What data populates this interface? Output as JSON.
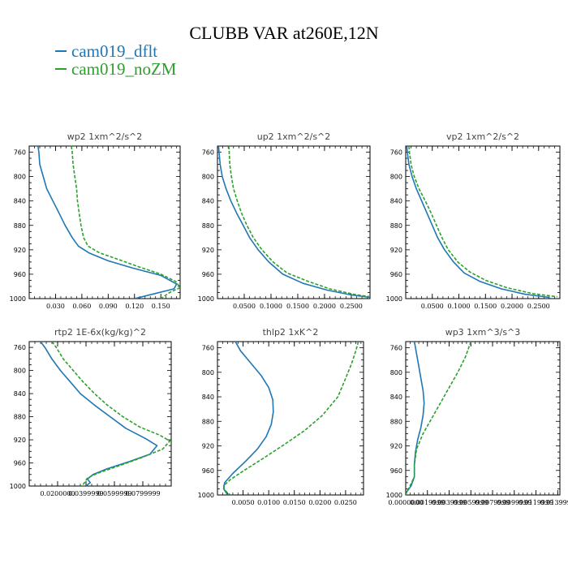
{
  "title": "CLUBB VAR at260E,12N",
  "legend": [
    {
      "name": "cam019_dflt",
      "color": "#1f77b4"
    },
    {
      "name": "cam019_noZM",
      "color": "#2ca02c"
    }
  ],
  "chart_data": [
    {
      "type": "line",
      "title": "wp2   1xm^2/s^2",
      "xlim": [
        0.0,
        0.172
      ],
      "ylim": [
        1000,
        750
      ],
      "xticks": [
        0.03,
        0.06,
        0.09,
        0.12,
        0.15
      ],
      "xtick_labels": [
        "0.030",
        "0.060",
        "0.090",
        "0.120",
        "0.150"
      ],
      "yticks": [
        760,
        800,
        840,
        880,
        920,
        960,
        1000
      ],
      "series": [
        {
          "color": "#1f77b4",
          "dash": "",
          "points": [
            [
              0.01,
              750
            ],
            [
              0.011,
              760
            ],
            [
              0.012,
              780
            ],
            [
              0.016,
              800
            ],
            [
              0.02,
              820
            ],
            [
              0.027,
              840
            ],
            [
              0.034,
              860
            ],
            [
              0.041,
              880
            ],
            [
              0.049,
              900
            ],
            [
              0.056,
              914
            ],
            [
              0.068,
              925
            ],
            [
              0.09,
              938
            ],
            [
              0.118,
              950
            ],
            [
              0.15,
              962
            ],
            [
              0.168,
              976
            ],
            [
              0.165,
              984
            ],
            [
              0.14,
              993
            ],
            [
              0.12,
              1000
            ]
          ]
        },
        {
          "color": "#2ca02c",
          "dash": "4,2",
          "points": [
            [
              0.048,
              750
            ],
            [
              0.049,
              760
            ],
            [
              0.05,
              780
            ],
            [
              0.052,
              800
            ],
            [
              0.054,
              820
            ],
            [
              0.055,
              840
            ],
            [
              0.057,
              860
            ],
            [
              0.059,
              880
            ],
            [
              0.062,
              900
            ],
            [
              0.067,
              914
            ],
            [
              0.08,
              925
            ],
            [
              0.1,
              935
            ],
            [
              0.125,
              948
            ],
            [
              0.15,
              960
            ],
            [
              0.167,
              972
            ],
            [
              0.172,
              982
            ],
            [
              0.16,
              990
            ],
            [
              0.15,
              1000
            ]
          ]
        }
      ]
    },
    {
      "type": "line",
      "title": "up2   1xm^2/s^2",
      "xlim": [
        0.0,
        0.285
      ],
      "ylim": [
        1000,
        750
      ],
      "xticks": [
        0.05,
        0.1,
        0.15,
        0.2,
        0.25
      ],
      "xtick_labels": [
        "0.0500",
        "0.1000",
        "0.1500",
        "0.2000",
        "0.2500"
      ],
      "yticks": [
        760,
        800,
        840,
        880,
        920,
        960,
        1000
      ],
      "series": [
        {
          "color": "#1f77b4",
          "dash": "",
          "points": [
            [
              0.002,
              750
            ],
            [
              0.003,
              760
            ],
            [
              0.005,
              780
            ],
            [
              0.009,
              800
            ],
            [
              0.016,
              820
            ],
            [
              0.025,
              840
            ],
            [
              0.036,
              860
            ],
            [
              0.048,
              880
            ],
            [
              0.06,
              900
            ],
            [
              0.076,
              920
            ],
            [
              0.096,
              940
            ],
            [
              0.122,
              960
            ],
            [
              0.16,
              975
            ],
            [
              0.205,
              986
            ],
            [
              0.25,
              994
            ],
            [
              0.285,
              998
            ]
          ]
        },
        {
          "color": "#2ca02c",
          "dash": "4,2",
          "points": [
            [
              0.021,
              750
            ],
            [
              0.022,
              760
            ],
            [
              0.023,
              780
            ],
            [
              0.026,
              800
            ],
            [
              0.03,
              820
            ],
            [
              0.037,
              840
            ],
            [
              0.045,
              860
            ],
            [
              0.055,
              880
            ],
            [
              0.067,
              900
            ],
            [
              0.083,
              920
            ],
            [
              0.104,
              940
            ],
            [
              0.13,
              958
            ],
            [
              0.17,
              972
            ],
            [
              0.21,
              984
            ],
            [
              0.255,
              993
            ],
            [
              0.285,
              997
            ]
          ]
        }
      ]
    },
    {
      "type": "line",
      "title": "vp2   1xm^2/s^2",
      "xlim": [
        0.0,
        0.29
      ],
      "ylim": [
        1000,
        750
      ],
      "xticks": [
        0.05,
        0.1,
        0.15,
        0.2,
        0.25
      ],
      "xtick_labels": [
        "0.0500",
        "0.1000",
        "0.1500",
        "0.2000",
        "0.2500"
      ],
      "yticks": [
        760,
        800,
        840,
        880,
        920,
        960,
        1000
      ],
      "series": [
        {
          "color": "#1f77b4",
          "dash": "",
          "points": [
            [
              0.002,
              750
            ],
            [
              0.003,
              760
            ],
            [
              0.006,
              780
            ],
            [
              0.012,
              800
            ],
            [
              0.02,
              820
            ],
            [
              0.03,
              840
            ],
            [
              0.04,
              860
            ],
            [
              0.05,
              880
            ],
            [
              0.06,
              900
            ],
            [
              0.073,
              920
            ],
            [
              0.09,
              940
            ],
            [
              0.11,
              958
            ],
            [
              0.14,
              972
            ],
            [
              0.18,
              984
            ],
            [
              0.225,
              993
            ],
            [
              0.27,
              998
            ]
          ]
        },
        {
          "color": "#2ca02c",
          "dash": "4,2",
          "points": [
            [
              0.006,
              750
            ],
            [
              0.007,
              760
            ],
            [
              0.01,
              780
            ],
            [
              0.016,
              800
            ],
            [
              0.025,
              820
            ],
            [
              0.037,
              840
            ],
            [
              0.048,
              860
            ],
            [
              0.058,
              880
            ],
            [
              0.068,
              900
            ],
            [
              0.08,
              920
            ],
            [
              0.098,
              940
            ],
            [
              0.12,
              956
            ],
            [
              0.15,
              970
            ],
            [
              0.19,
              982
            ],
            [
              0.24,
              992
            ],
            [
              0.285,
              997
            ]
          ]
        }
      ]
    },
    {
      "type": "line",
      "title": "rtp2   1E-6x(kg/kg)^2",
      "xlim": [
        0.0,
        0.1
      ],
      "ylim": [
        1000,
        750
      ],
      "xticks": [
        0.02,
        0.04,
        0.06,
        0.08
      ],
      "xtick_labels": [
        "0.0200000",
        "0.0399999",
        "0.0599999",
        "0.0799999"
      ],
      "yticks": [
        760,
        800,
        840,
        880,
        920,
        960,
        1000
      ],
      "series": [
        {
          "color": "#1f77b4",
          "dash": "",
          "points": [
            [
              0.008,
              750
            ],
            [
              0.011,
              760
            ],
            [
              0.016,
              780
            ],
            [
              0.022,
              800
            ],
            [
              0.029,
              820
            ],
            [
              0.036,
              840
            ],
            [
              0.046,
              860
            ],
            [
              0.057,
              880
            ],
            [
              0.068,
              900
            ],
            [
              0.082,
              918
            ],
            [
              0.09,
              930
            ],
            [
              0.085,
              945
            ],
            [
              0.07,
              958
            ],
            [
              0.055,
              970
            ],
            [
              0.045,
              980
            ],
            [
              0.041,
              988
            ],
            [
              0.043,
              994
            ],
            [
              0.04,
              1000
            ]
          ]
        },
        {
          "color": "#2ca02c",
          "dash": "4,2",
          "points": [
            [
              0.016,
              750
            ],
            [
              0.019,
              760
            ],
            [
              0.024,
              780
            ],
            [
              0.031,
              800
            ],
            [
              0.038,
              820
            ],
            [
              0.046,
              840
            ],
            [
              0.055,
              860
            ],
            [
              0.066,
              880
            ],
            [
              0.078,
              898
            ],
            [
              0.092,
              912
            ],
            [
              0.099,
              922
            ],
            [
              0.094,
              936
            ],
            [
              0.078,
              952
            ],
            [
              0.062,
              966
            ],
            [
              0.048,
              978
            ],
            [
              0.041,
              986
            ],
            [
              0.039,
              994
            ],
            [
              0.037,
              1000
            ]
          ]
        }
      ]
    },
    {
      "type": "line",
      "title": "thlp2   1xK^2",
      "xlim": [
        0.0,
        0.0285
      ],
      "ylim": [
        1000,
        750
      ],
      "xticks": [
        0.005,
        0.01,
        0.015,
        0.02,
        0.025
      ],
      "xtick_labels": [
        "0.0050",
        "0.0100",
        "0.0150",
        "0.0200",
        "0.0250"
      ],
      "yticks": [
        760,
        800,
        840,
        880,
        920,
        960,
        1000
      ],
      "series": [
        {
          "color": "#1f77b4",
          "dash": "",
          "points": [
            [
              0.0035,
              750
            ],
            [
              0.0045,
              765
            ],
            [
              0.0065,
              785
            ],
            [
              0.0085,
              805
            ],
            [
              0.01,
              825
            ],
            [
              0.0108,
              845
            ],
            [
              0.0109,
              865
            ],
            [
              0.0105,
              885
            ],
            [
              0.0095,
              905
            ],
            [
              0.0078,
              925
            ],
            [
              0.0055,
              945
            ],
            [
              0.003,
              965
            ],
            [
              0.0014,
              980
            ],
            [
              0.0012,
              990
            ],
            [
              0.002,
              1000
            ]
          ]
        },
        {
          "color": "#2ca02c",
          "dash": "4,2",
          "points": [
            [
              0.0275,
              750
            ],
            [
              0.027,
              765
            ],
            [
              0.0262,
              785
            ],
            [
              0.025,
              810
            ],
            [
              0.0235,
              840
            ],
            [
              0.0205,
              870
            ],
            [
              0.017,
              895
            ],
            [
              0.013,
              918
            ],
            [
              0.009,
              940
            ],
            [
              0.0052,
              960
            ],
            [
              0.0025,
              975
            ],
            [
              0.0012,
              985
            ],
            [
              0.0014,
              992
            ],
            [
              0.0025,
              1000
            ]
          ]
        }
      ]
    },
    {
      "type": "line",
      "title": "wp3   1xm^3/s^3",
      "xlim": [
        0.0,
        0.0142
      ],
      "ylim": [
        1000,
        750
      ],
      "xticks": [
        0.0,
        0.002,
        0.004,
        0.006,
        0.008,
        0.01,
        0.012,
        0.014
      ],
      "xtick_labels": [
        "0.0000000",
        "0.0019999",
        "0.0039999",
        "0.0059999",
        "0.0079999",
        "0.0099999",
        "0.0119999",
        "0.0139999"
      ],
      "yticks": [
        760,
        800,
        840,
        880,
        920,
        960,
        1000
      ],
      "series": [
        {
          "color": "#1f77b4",
          "dash": "",
          "points": [
            [
              0.0008,
              750
            ],
            [
              0.001,
              770
            ],
            [
              0.0013,
              800
            ],
            [
              0.0016,
              830
            ],
            [
              0.0017,
              850
            ],
            [
              0.0016,
              870
            ],
            [
              0.0014,
              890
            ],
            [
              0.0011,
              910
            ],
            [
              0.0009,
              930
            ],
            [
              0.0008,
              950
            ],
            [
              0.0008,
              970
            ],
            [
              0.0005,
              985
            ],
            [
              0.0001,
              995
            ],
            [
              0.0,
              1000
            ]
          ]
        },
        {
          "color": "#2ca02c",
          "dash": "4,2",
          "points": [
            [
              0.006,
              750
            ],
            [
              0.0055,
              775
            ],
            [
              0.0048,
              800
            ],
            [
              0.004,
              825
            ],
            [
              0.0032,
              850
            ],
            [
              0.0024,
              875
            ],
            [
              0.0016,
              900
            ],
            [
              0.001,
              925
            ],
            [
              0.0008,
              950
            ],
            [
              0.0008,
              970
            ],
            [
              0.0004,
              985
            ],
            [
              0.0001,
              995
            ],
            [
              0.0,
              1000
            ]
          ]
        }
      ]
    }
  ]
}
